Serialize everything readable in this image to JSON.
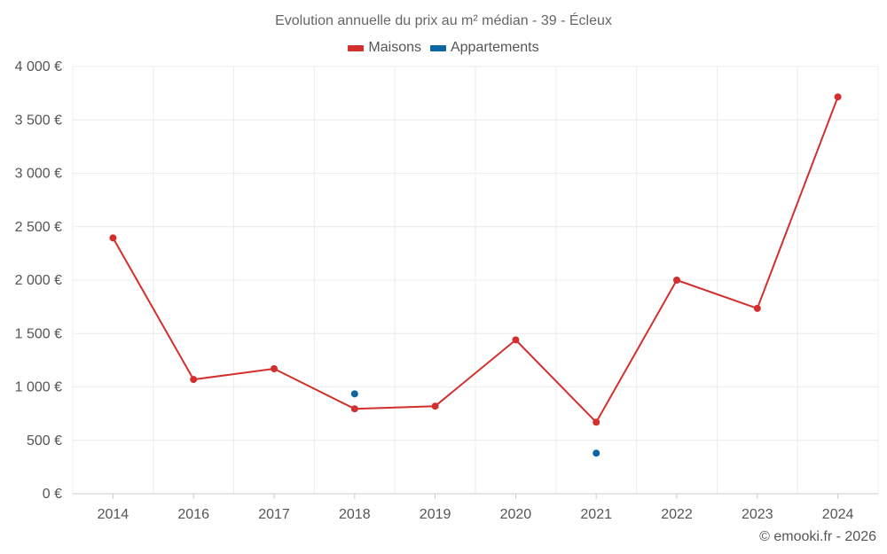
{
  "title": "Evolution annuelle du prix au m² médian - 39 - Écleux",
  "footer": "© emooki.fr - 2026",
  "colors": {
    "maisons": "#d32f2f",
    "appartements": "#0b66a3",
    "grid": "#ececec",
    "axis": "#cccccc"
  },
  "chart_data": {
    "type": "line",
    "title": "Evolution annuelle du prix au m² médian - 39 - Écleux",
    "xlabel": "",
    "ylabel": "",
    "categories": [
      "2014",
      "2016",
      "2017",
      "2018",
      "2019",
      "2020",
      "2021",
      "2022",
      "2023",
      "2024"
    ],
    "y_ticks": [
      "0 €",
      "500 €",
      "1 000 €",
      "1 500 €",
      "2 000 €",
      "2 500 €",
      "3 000 €",
      "3 500 €",
      "4 000 €"
    ],
    "ylim": [
      0,
      4000
    ],
    "grid": true,
    "legend_position": "top-center",
    "series": [
      {
        "name": "Maisons",
        "color": "#d32f2f",
        "line": true,
        "values": [
          2395,
          1070,
          1170,
          795,
          820,
          1440,
          670,
          2000,
          1735,
          3715
        ]
      },
      {
        "name": "Appartements",
        "color": "#0b66a3",
        "line": false,
        "values": [
          null,
          null,
          null,
          935,
          null,
          null,
          380,
          null,
          null,
          null
        ]
      }
    ]
  }
}
